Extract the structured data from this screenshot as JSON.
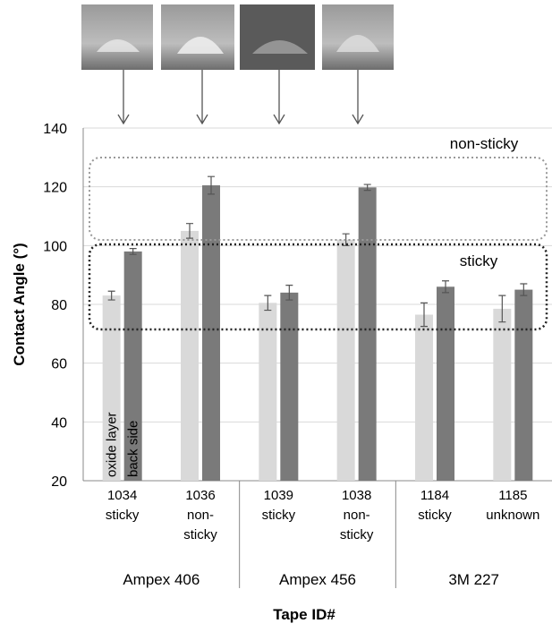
{
  "chart_data": {
    "type": "bar",
    "y_axis_label": "Contact Angle (°)",
    "x_axis_label": "Tape ID#",
    "categories": [
      [
        "1034",
        "sticky"
      ],
      [
        "1036",
        "non-",
        "sticky"
      ],
      [
        "1039",
        "sticky"
      ],
      [
        "1038",
        "non-",
        "sticky"
      ],
      [
        "1184",
        "sticky"
      ],
      [
        "1185",
        "unknown"
      ]
    ],
    "groups": [
      "Ampex 406",
      "Ampex 456",
      "3M 227"
    ],
    "series": [
      {
        "name": "oxide layer",
        "color": "#d9d9d9",
        "values": [
          83,
          105,
          80.5,
          102,
          76.5,
          78.5
        ],
        "errors": [
          1.5,
          2.5,
          2.5,
          2,
          4,
          4.5
        ]
      },
      {
        "name": "back side",
        "color": "#7a7a7a",
        "values": [
          98,
          120.5,
          84,
          119.8,
          86,
          85
        ],
        "errors": [
          1,
          3,
          2.5,
          1,
          2,
          2
        ]
      }
    ],
    "annotations": [
      "non-sticky",
      "sticky"
    ],
    "ylim": [
      20,
      140
    ],
    "yticks": [
      20,
      40,
      60,
      80,
      100,
      120,
      140
    ],
    "grid": true
  }
}
